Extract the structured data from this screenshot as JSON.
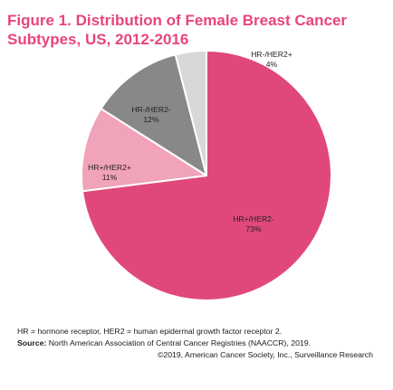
{
  "title": "Figure 1. Distribution of Female Breast Cancer Subtypes, US, 2012-2016",
  "chart_data": {
    "type": "pie",
    "title": "Figure 1. Distribution of Female Breast Cancer Subtypes, US, 2012-2016",
    "slices": [
      {
        "label": "HR+/HER2-",
        "value": 73,
        "value_label": "73%",
        "color": "#e0487a"
      },
      {
        "label": "HR+/HER2+",
        "value": 11,
        "value_label": "11%",
        "color": "#f0a3b9"
      },
      {
        "label": "HR-/HER2-",
        "value": 12,
        "value_label": "12%",
        "color": "#88888b"
      },
      {
        "label": "HR-/HER2+",
        "value": 4,
        "value_label": "4%",
        "color": "#d8d8d8"
      }
    ],
    "start_direction": "clockwise from top, largest slice first"
  },
  "footer": {
    "note": "HR = hormone receptor, HER2 = human epidermal growth factor receptor 2.",
    "source_label": "Source:",
    "source_text": " North American Association of Central Cancer Registries (NAACCR), 2019.",
    "copyright": "©2019, American Cancer Society, Inc., Surveillance Research"
  },
  "colors": {
    "title": "#e8457a",
    "slice_border": "#ffffff"
  }
}
